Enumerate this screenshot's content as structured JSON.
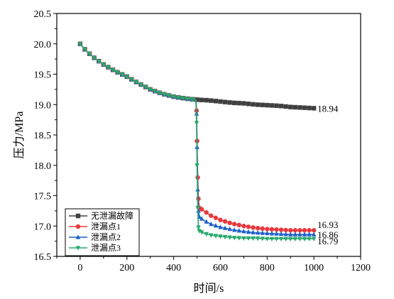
{
  "chart_data": {
    "type": "line",
    "xlabel": "时间/s",
    "ylabel": "压力/MPa",
    "xlim": [
      -100,
      1200
    ],
    "ylim": [
      16.5,
      20.5
    ],
    "xticks": [
      0,
      200,
      400,
      600,
      800,
      1000,
      1200
    ],
    "yticks": [
      16.5,
      17.0,
      17.5,
      18.0,
      18.5,
      19.0,
      19.5,
      20.0,
      20.5
    ],
    "xtick_labels": [
      "0",
      "200",
      "400",
      "600",
      "800",
      "1000",
      "1200"
    ],
    "ytick_labels": [
      "16.5",
      "17.0",
      "17.5",
      "18.0",
      "18.5",
      "19.0",
      "19.5",
      "20.0",
      "20.5"
    ],
    "legend_position": "bottom-left",
    "series": [
      {
        "name": "无泄漏故障",
        "color": "#404040",
        "marker": "square",
        "end_label": "18.94",
        "points": [
          [
            0,
            20.0
          ],
          [
            10,
            19.95
          ],
          [
            30,
            19.87
          ],
          [
            60,
            19.77
          ],
          [
            100,
            19.66
          ],
          [
            150,
            19.55
          ],
          [
            200,
            19.46
          ],
          [
            250,
            19.35
          ],
          [
            300,
            19.25
          ],
          [
            350,
            19.18
          ],
          [
            400,
            19.13
          ],
          [
            450,
            19.1
          ],
          [
            500,
            19.08
          ],
          [
            550,
            19.07
          ],
          [
            600,
            19.05
          ],
          [
            650,
            19.03
          ],
          [
            700,
            19.02
          ],
          [
            750,
            19.0
          ],
          [
            800,
            18.99
          ],
          [
            850,
            18.98
          ],
          [
            900,
            18.96
          ],
          [
            950,
            18.95
          ],
          [
            1000,
            18.94
          ]
        ]
      },
      {
        "name": "泄漏点1",
        "color": "#e8383d",
        "marker": "circle",
        "end_label": "16.93",
        "points": [
          [
            0,
            20.0
          ],
          [
            10,
            19.95
          ],
          [
            30,
            19.87
          ],
          [
            60,
            19.77
          ],
          [
            100,
            19.66
          ],
          [
            150,
            19.55
          ],
          [
            200,
            19.46
          ],
          [
            250,
            19.35
          ],
          [
            300,
            19.25
          ],
          [
            350,
            19.18
          ],
          [
            400,
            19.13
          ],
          [
            450,
            19.1
          ],
          [
            495,
            19.08
          ],
          [
            498,
            18.9
          ],
          [
            500,
            18.4
          ],
          [
            503,
            17.8
          ],
          [
            506,
            17.45
          ],
          [
            510,
            17.3
          ],
          [
            530,
            17.25
          ],
          [
            560,
            17.17
          ],
          [
            600,
            17.1
          ],
          [
            650,
            17.04
          ],
          [
            700,
            17.0
          ],
          [
            750,
            16.97
          ],
          [
            800,
            16.95
          ],
          [
            850,
            16.94
          ],
          [
            900,
            16.93
          ],
          [
            950,
            16.93
          ],
          [
            1000,
            16.93
          ]
        ]
      },
      {
        "name": "泄漏点2",
        "color": "#1f5fc8",
        "marker": "triangle-up",
        "end_label": "16.86",
        "points": [
          [
            0,
            20.0
          ],
          [
            10,
            19.95
          ],
          [
            30,
            19.87
          ],
          [
            60,
            19.77
          ],
          [
            100,
            19.66
          ],
          [
            150,
            19.55
          ],
          [
            200,
            19.46
          ],
          [
            250,
            19.35
          ],
          [
            300,
            19.25
          ],
          [
            350,
            19.18
          ],
          [
            400,
            19.13
          ],
          [
            450,
            19.1
          ],
          [
            495,
            19.08
          ],
          [
            498,
            18.85
          ],
          [
            500,
            18.3
          ],
          [
            503,
            17.6
          ],
          [
            506,
            17.25
          ],
          [
            510,
            17.15
          ],
          [
            530,
            17.09
          ],
          [
            560,
            17.03
          ],
          [
            600,
            16.98
          ],
          [
            650,
            16.94
          ],
          [
            700,
            16.91
          ],
          [
            750,
            16.89
          ],
          [
            800,
            16.88
          ],
          [
            850,
            16.87
          ],
          [
            900,
            16.86
          ],
          [
            950,
            16.86
          ],
          [
            1000,
            16.86
          ]
        ]
      },
      {
        "name": "泄漏点3",
        "color": "#27a86c",
        "marker": "triangle-down",
        "end_label": "16.79",
        "points": [
          [
            0,
            20.0
          ],
          [
            10,
            19.95
          ],
          [
            30,
            19.87
          ],
          [
            60,
            19.77
          ],
          [
            100,
            19.66
          ],
          [
            150,
            19.55
          ],
          [
            200,
            19.46
          ],
          [
            250,
            19.35
          ],
          [
            300,
            19.25
          ],
          [
            350,
            19.18
          ],
          [
            400,
            19.13
          ],
          [
            450,
            19.1
          ],
          [
            495,
            19.08
          ],
          [
            498,
            18.7
          ],
          [
            500,
            18.0
          ],
          [
            503,
            17.3
          ],
          [
            506,
            16.98
          ],
          [
            510,
            16.92
          ],
          [
            530,
            16.88
          ],
          [
            560,
            16.85
          ],
          [
            600,
            16.83
          ],
          [
            650,
            16.81
          ],
          [
            700,
            16.8
          ],
          [
            750,
            16.8
          ],
          [
            800,
            16.79
          ],
          [
            850,
            16.79
          ],
          [
            900,
            16.79
          ],
          [
            950,
            16.79
          ],
          [
            1000,
            16.79
          ]
        ]
      }
    ]
  }
}
